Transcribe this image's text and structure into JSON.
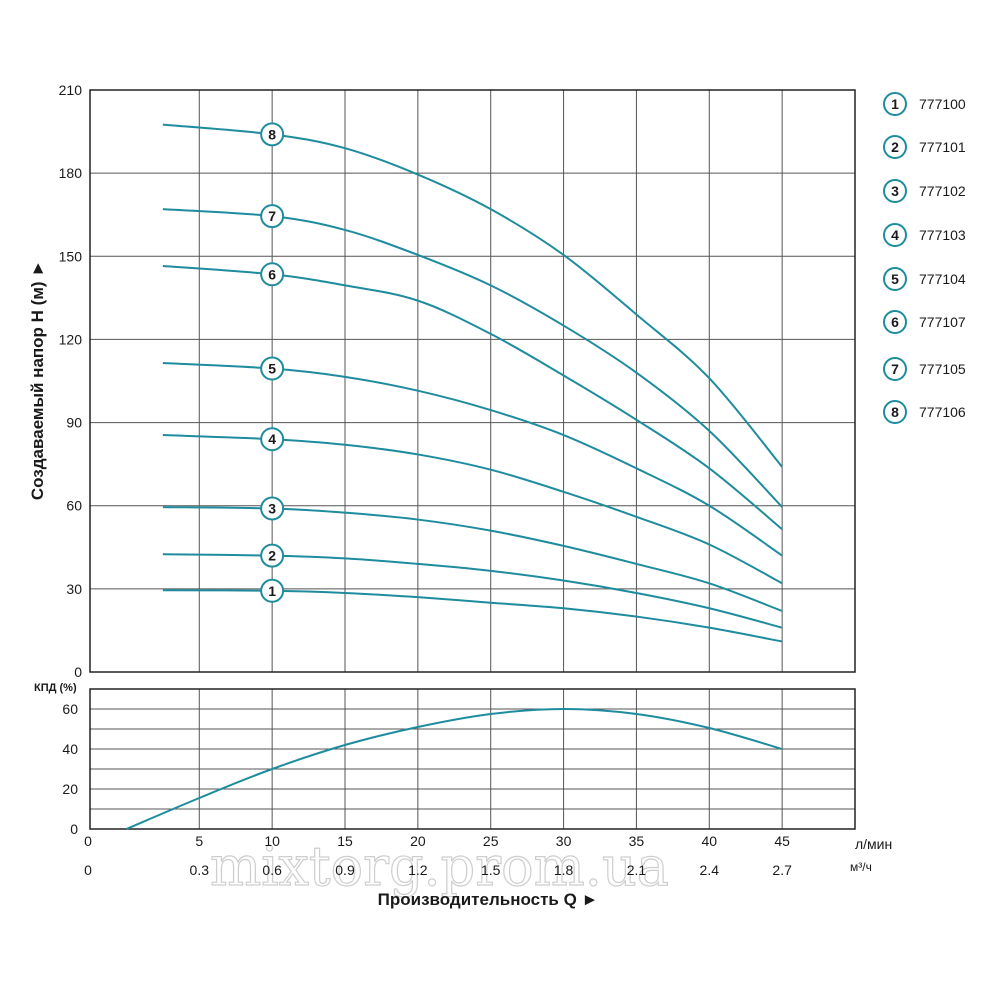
{
  "watermark": "mixtorg.prom.ua",
  "colors": {
    "curve": "#1e8c9e",
    "badge_stroke": "#1e8c9e",
    "grid": "#555555",
    "frame": "#222222"
  },
  "chart_data": [
    {
      "type": "line",
      "ylabel": "Создаваемый напор Н (м) ►",
      "ylim": [
        0,
        210
      ],
      "yticks": [
        "0",
        "30",
        "60",
        "90",
        "120",
        "150",
        "180",
        "210"
      ],
      "xlim": [
        -2.5,
        50
      ],
      "xticks_primary": {
        "values": [
          0,
          5,
          10,
          15,
          20,
          25,
          30,
          35,
          40,
          45
        ],
        "labels": [
          "0",
          "5",
          "10",
          "15",
          "20",
          "25",
          "30",
          "35",
          "40",
          "45"
        ],
        "unit": "л/мин"
      },
      "xticks_secondary": {
        "values": [
          0,
          5,
          10,
          15,
          20,
          25,
          30,
          35,
          40,
          45
        ],
        "labels": [
          "0",
          "0.3",
          "0.6",
          "0.9",
          "1.2",
          "1.5",
          "1.8",
          "2.1",
          "2.4",
          "2.7"
        ],
        "unit": "м³/ч"
      },
      "xlabel": "Производительность Q ►",
      "grid": true,
      "legend": {
        "placement": "right",
        "entries": [
          {
            "badge": "1",
            "label": "777100"
          },
          {
            "badge": "2",
            "label": "777101"
          },
          {
            "badge": "3",
            "label": "777102"
          },
          {
            "badge": "4",
            "label": "777103"
          },
          {
            "badge": "5",
            "label": "777104"
          },
          {
            "badge": "6",
            "label": "777107"
          },
          {
            "badge": "7",
            "label": "777105"
          },
          {
            "badge": "8",
            "label": "777106"
          }
        ]
      },
      "series": [
        {
          "badge": "1",
          "x": [
            2.5,
            10,
            15,
            20,
            25,
            30,
            35,
            40,
            45
          ],
          "y": [
            29.5,
            29.3,
            28.5,
            27,
            25,
            23,
            20,
            16,
            11
          ]
        },
        {
          "badge": "2",
          "x": [
            2.5,
            10,
            15,
            20,
            25,
            30,
            35,
            40,
            45
          ],
          "y": [
            42.5,
            42,
            41,
            39,
            36.5,
            33,
            28.5,
            23,
            16
          ]
        },
        {
          "badge": "3",
          "x": [
            2.5,
            10,
            15,
            20,
            25,
            30,
            35,
            40,
            45
          ],
          "y": [
            59.5,
            59,
            57.5,
            55,
            51,
            45.5,
            39,
            32,
            22
          ]
        },
        {
          "badge": "4",
          "x": [
            2.5,
            10,
            15,
            20,
            25,
            30,
            35,
            40,
            45
          ],
          "y": [
            85.5,
            84,
            82,
            78.5,
            73,
            65,
            56,
            46,
            32
          ]
        },
        {
          "badge": "5",
          "x": [
            2.5,
            10,
            15,
            20,
            25,
            30,
            35,
            40,
            45
          ],
          "y": [
            111.5,
            109.5,
            106.5,
            101.5,
            94.5,
            85.5,
            73.5,
            60,
            42
          ]
        },
        {
          "badge": "6",
          "x": [
            2.5,
            10,
            15,
            20,
            25,
            30,
            35,
            40,
            45
          ],
          "y": [
            146.5,
            143.5,
            139.5,
            134,
            122,
            107,
            91,
            73.5,
            51.5
          ]
        },
        {
          "badge": "7",
          "x": [
            2.5,
            10,
            15,
            20,
            25,
            30,
            35,
            40,
            45
          ],
          "y": [
            167,
            164.5,
            159.5,
            150.5,
            139.5,
            125,
            108,
            87,
            59.5
          ]
        },
        {
          "badge": "8",
          "x": [
            2.5,
            10,
            15,
            20,
            25,
            30,
            35,
            40,
            45
          ],
          "y": [
            197.5,
            194,
            189,
            179.5,
            167,
            150.5,
            129,
            106,
            74
          ]
        }
      ],
      "badge_x": 10
    },
    {
      "type": "line",
      "ylabel": "КПД (%)",
      "ylim": [
        0,
        70
      ],
      "yticks": [
        "0",
        "20",
        "40",
        "60"
      ],
      "xlim": [
        -2.5,
        50
      ],
      "grid": true,
      "series": [
        {
          "x": [
            0,
            5,
            10,
            15,
            20,
            25,
            30,
            35,
            40,
            45
          ],
          "y": [
            0,
            15.5,
            30,
            42,
            51,
            57.5,
            60,
            57.5,
            50.5,
            40
          ]
        }
      ]
    }
  ]
}
